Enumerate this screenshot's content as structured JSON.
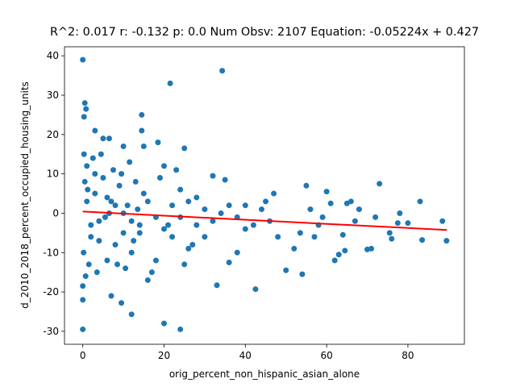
{
  "chart_data": {
    "type": "scatter",
    "title": "R^2: 0.017 r: -0.132 p: 0.0 Num Obsv: 2107 Equation: -0.05224x + 0.427",
    "x_label": "orig_percent_non_hispanic_asian_alone",
    "y_label": "d_2010_2018_percent_occupied_housing_units",
    "xlim": [
      -4.5,
      93.9
    ],
    "ylim": [
      -33.3,
      42.3
    ],
    "xticks": [
      0,
      20,
      40,
      60,
      80
    ],
    "yticks": [
      -30,
      -20,
      -10,
      0,
      10,
      20,
      30,
      40
    ],
    "color": "#1f77b4",
    "x": [
      0,
      0.3,
      0.5,
      0.8,
      0,
      0,
      0,
      21.5,
      34.3,
      20,
      24,
      33,
      42.5,
      14.5,
      14.5,
      15,
      18.5,
      25,
      10,
      7,
      9.5,
      12,
      3,
      5,
      6.5,
      89.5,
      88.5,
      83,
      83.5,
      80,
      77.5,
      78,
      73,
      75.5,
      76,
      72,
      71,
      70,
      65,
      66,
      64,
      64.5,
      63,
      62,
      60,
      61,
      58,
      55,
      54,
      50,
      52,
      53.5,
      47,
      48,
      45,
      40,
      38,
      36,
      35,
      32,
      30,
      28,
      27,
      25,
      26,
      24,
      23,
      22,
      21,
      20,
      19,
      18,
      17,
      16,
      15,
      14,
      13,
      12,
      11,
      10,
      9,
      8,
      7,
      6,
      5,
      4,
      3,
      2,
      1,
      0.5,
      0.2,
      1.5,
      2.5,
      3.5,
      4.5,
      5.5,
      6.5,
      7.5,
      8.5,
      9.5,
      10.5,
      11.5,
      12.5,
      13.5,
      1,
      2,
      3,
      0.3,
      0.7,
      1.2,
      4,
      6,
      8,
      10,
      12,
      14,
      16,
      18,
      20,
      22,
      24,
      26,
      28,
      30,
      32,
      34,
      36,
      38,
      40,
      42,
      44,
      46,
      56,
      57,
      59,
      67,
      68
    ],
    "values": [
      39,
      24.5,
      28,
      26.5,
      -29.5,
      -22,
      -18.5,
      33,
      36.2,
      -28,
      -29.5,
      -18.3,
      -19.3,
      25,
      21,
      17,
      18,
      16.5,
      17,
      -21,
      -22.8,
      -25.7,
      21,
      19,
      19,
      -7,
      -2,
      3,
      -6.8,
      -2.5,
      -2.5,
      0,
      7.5,
      -5,
      -6.5,
      -1,
      -9,
      -9.2,
      2.5,
      3,
      -5.5,
      -9.5,
      -10.5,
      -12,
      5.5,
      2.5,
      -3,
      7,
      -15.5,
      -14.5,
      -9,
      -5,
      5,
      -6,
      3,
      -4,
      -10,
      -12.5,
      8.5,
      9.5,
      -6,
      4,
      -8,
      -13,
      -9,
      6,
      11,
      -6,
      -3,
      12,
      9,
      -12,
      -15,
      -17,
      5,
      -3,
      8,
      -10,
      2,
      -5,
      7,
      -8,
      3,
      -12,
      9,
      -7,
      5,
      -3,
      12,
      8,
      -10,
      -13,
      14,
      -15,
      15,
      -1,
      0,
      11,
      -13,
      10,
      -14,
      13,
      -7,
      1,
      3,
      -6,
      10,
      15,
      -16,
      6,
      -2,
      4,
      2,
      0,
      -2,
      -5,
      3,
      -1,
      -4,
      2,
      -1,
      3,
      -3,
      1,
      -2,
      0,
      2,
      -1,
      2,
      -3,
      1,
      -2,
      1,
      -6,
      -1,
      -2,
      1
    ],
    "fit": {
      "x": [
        0,
        89.6
      ],
      "values": [
        0.427,
        -4.254
      ],
      "color": "#ff0000"
    }
  }
}
